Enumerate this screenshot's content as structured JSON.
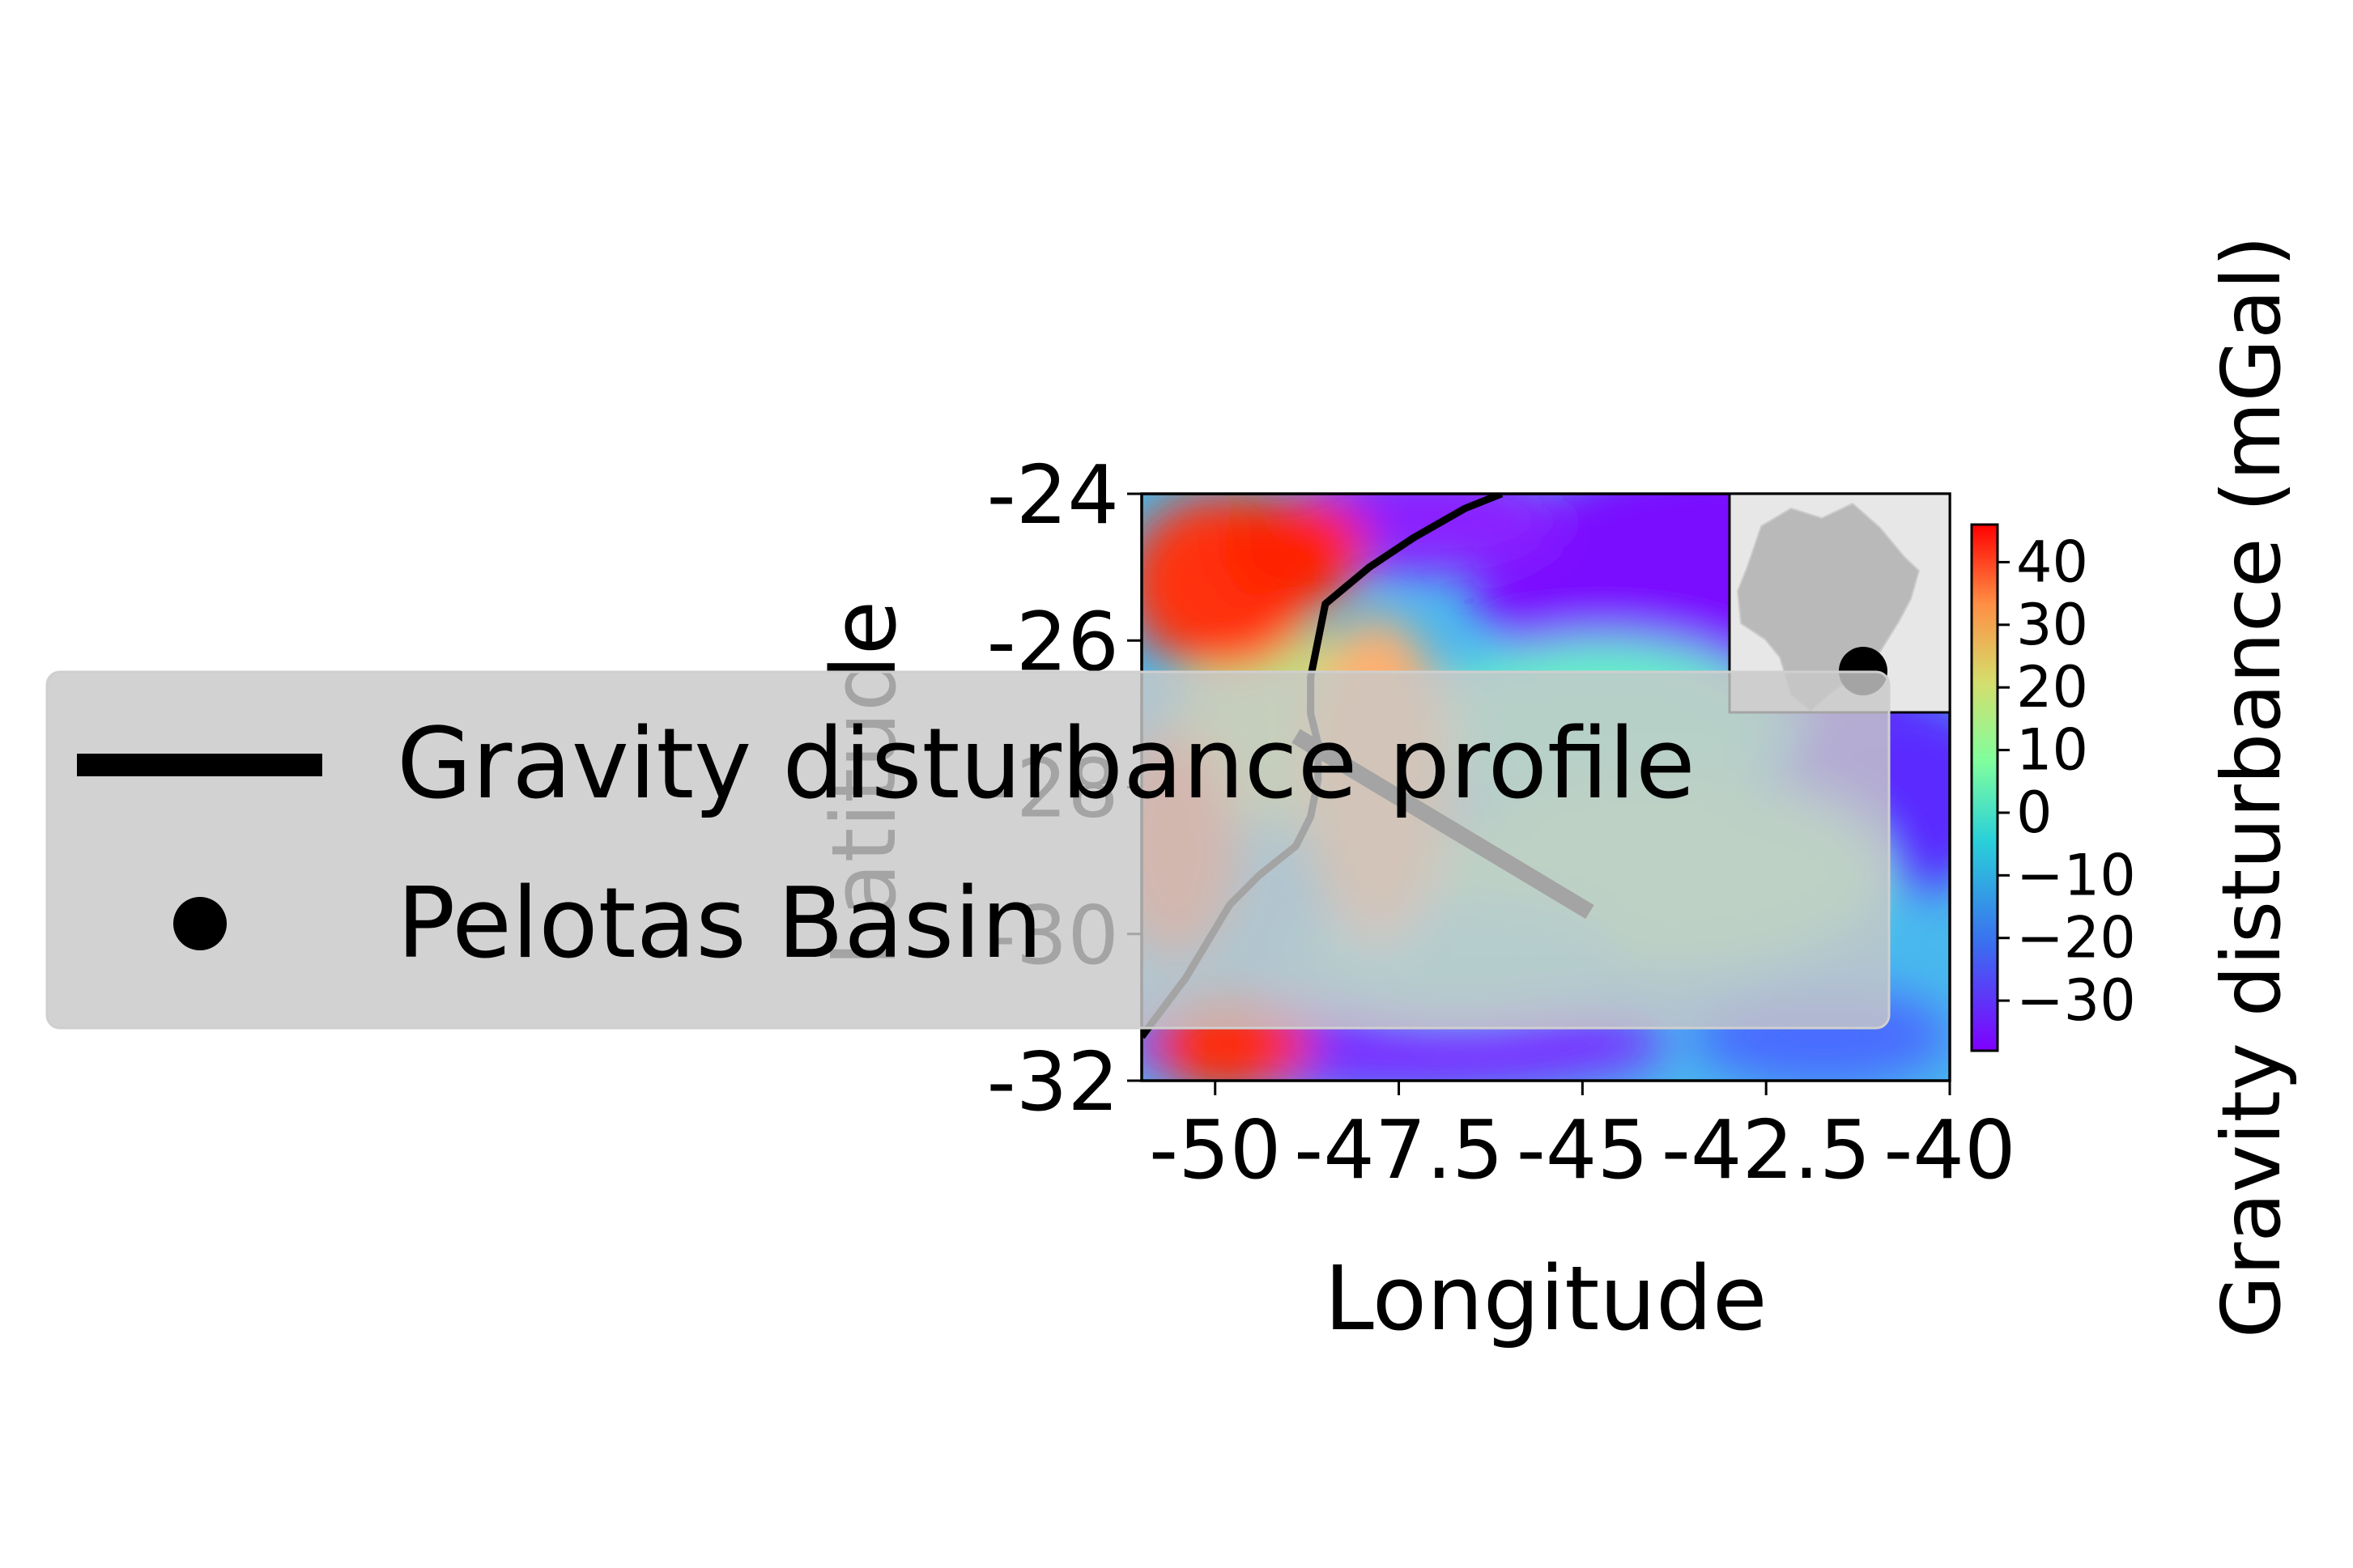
{
  "chart_data": {
    "type": "heatmap",
    "map_type": "gravity disturbance map with coastline and profile",
    "xlabel": "Longitude",
    "ylabel": "Latitude",
    "x_ticks": [
      "-50",
      "-47.5",
      "-45",
      "-42.5",
      "-40"
    ],
    "x_tick_values": [
      -50,
      -47.5,
      -45,
      -42.5,
      -40
    ],
    "y_ticks": [
      "-24",
      "-26",
      "-28",
      "-30",
      "-32"
    ],
    "y_tick_values": [
      -24,
      -26,
      -28,
      -30,
      -32
    ],
    "xlim": [
      -51,
      -40
    ],
    "ylim": [
      -32,
      -24
    ],
    "colormap": "rainbow",
    "colorbar": {
      "label": "Gravity disturbance (mGal)",
      "ticks": [
        "40",
        "30",
        "20",
        "10",
        "0",
        "−10",
        "−20",
        "−30"
      ],
      "tick_values": [
        40,
        30,
        20,
        10,
        0,
        -10,
        -20,
        -30
      ],
      "range": [
        -38,
        46
      ]
    },
    "profile": {
      "name": "Gravity disturbance profile",
      "color": "#000000",
      "points": [
        [
          -48.9,
          -27.3
        ],
        [
          -44.9,
          -29.7
        ]
      ]
    },
    "coastline_color": "#000000",
    "coastline": [
      [
        -51.0,
        -31.4
      ],
      [
        -50.7,
        -31.0
      ],
      [
        -50.4,
        -30.6
      ],
      [
        -50.1,
        -30.1
      ],
      [
        -49.8,
        -29.6
      ],
      [
        -49.4,
        -29.2
      ],
      [
        -48.9,
        -28.8
      ],
      [
        -48.7,
        -28.4
      ],
      [
        -48.6,
        -27.9
      ],
      [
        -48.6,
        -27.4
      ],
      [
        -48.7,
        -27.0
      ],
      [
        -48.7,
        -26.5
      ],
      [
        -48.6,
        -26.0
      ],
      [
        -48.5,
        -25.5
      ],
      [
        -47.9,
        -25.0
      ],
      [
        -47.3,
        -24.6
      ],
      [
        -46.6,
        -24.2
      ],
      [
        -46.1,
        -24.0
      ]
    ],
    "legend": {
      "location": "center-left",
      "entries": [
        "Gravity disturbance profile",
        "Pelotas Basin"
      ]
    },
    "inset": {
      "content": "map of Brazil with marker",
      "marker": "Pelotas Basin",
      "location": "top-right"
    }
  }
}
